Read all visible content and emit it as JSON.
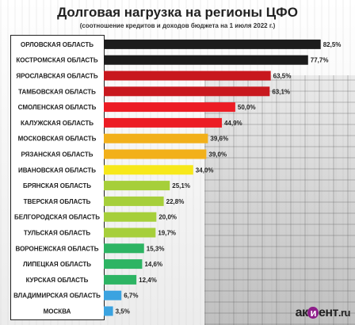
{
  "chart_data": {
    "type": "bar",
    "orientation": "horizontal",
    "title": "Долговая нагрузка на регионы ЦФО",
    "subtitle": "(соотношение кредитов и доходов бюджета на 1 июля 2022 г.)",
    "categories": [
      "ОРЛОВСКАЯ ОБЛАСТЬ",
      "КОСТРОМСКАЯ ОБЛАСТЬ",
      "ЯРОСЛАВСКАЯ ОБЛАСТЬ",
      "ТАМБОВСКАЯ ОБЛАСТЬ",
      "СМОЛЕНСКАЯ ОБЛАСТЬ",
      "КАЛУЖСКАЯ ОБЛАСТЬ",
      "МОСКОВСКАЯ ОБЛАСТЬ",
      "РЯЗАНСКАЯ ОБЛАСТЬ",
      "ИВАНОВСКАЯ ОБЛАСТЬ",
      "БРЯНСКАЯ ОБЛАСТЬ",
      "ТВЕРСКАЯ ОБЛАСТЬ",
      "БЕЛГОРОДСКАЯ ОБЛАСТЬ",
      "ТУЛЬСКАЯ ОБЛАСТЬ",
      "ВОРОНЕЖСКАЯ ОБЛАСТЬ",
      "ЛИПЕЦКАЯ ОБЛАСТЬ",
      "КУРСКАЯ ОБЛАСТЬ",
      "ВЛАДИМИРСКАЯ ОБЛАСТЬ",
      "МОСКВА"
    ],
    "values": [
      82.5,
      77.7,
      63.5,
      63.1,
      50.0,
      44.9,
      39.6,
      39.0,
      34.0,
      25.1,
      22.8,
      20.0,
      19.7,
      15.3,
      14.6,
      12.4,
      6.7,
      3.5
    ],
    "value_labels": [
      "82,5%",
      "77,7%",
      "63,5%",
      "63,1%",
      "50,0%",
      "44,9%",
      "39,6%",
      "39,0%",
      "34,0%",
      "25,1%",
      "22,8%",
      "20,0%",
      "19,7%",
      "15,3%",
      "14,6%",
      "12,4%",
      "6,7%",
      "3,5%"
    ],
    "colors": [
      "#1c1c1c",
      "#1c1c1c",
      "#c8181e",
      "#c8181e",
      "#ec1c24",
      "#ec1c24",
      "#f2b01a",
      "#f2b01a",
      "#f7e81a",
      "#a6cf3a",
      "#a6cf3a",
      "#a6cf3a",
      "#a6cf3a",
      "#2db463",
      "#2db463",
      "#2db463",
      "#3ba3e0",
      "#3ba3e0"
    ],
    "xlim": [
      0,
      85
    ],
    "grid": false,
    "legend": "none"
  },
  "logo": {
    "prefix": "ак",
    "mark": "и",
    "suffix": "ент",
    "domain": ".ru"
  }
}
